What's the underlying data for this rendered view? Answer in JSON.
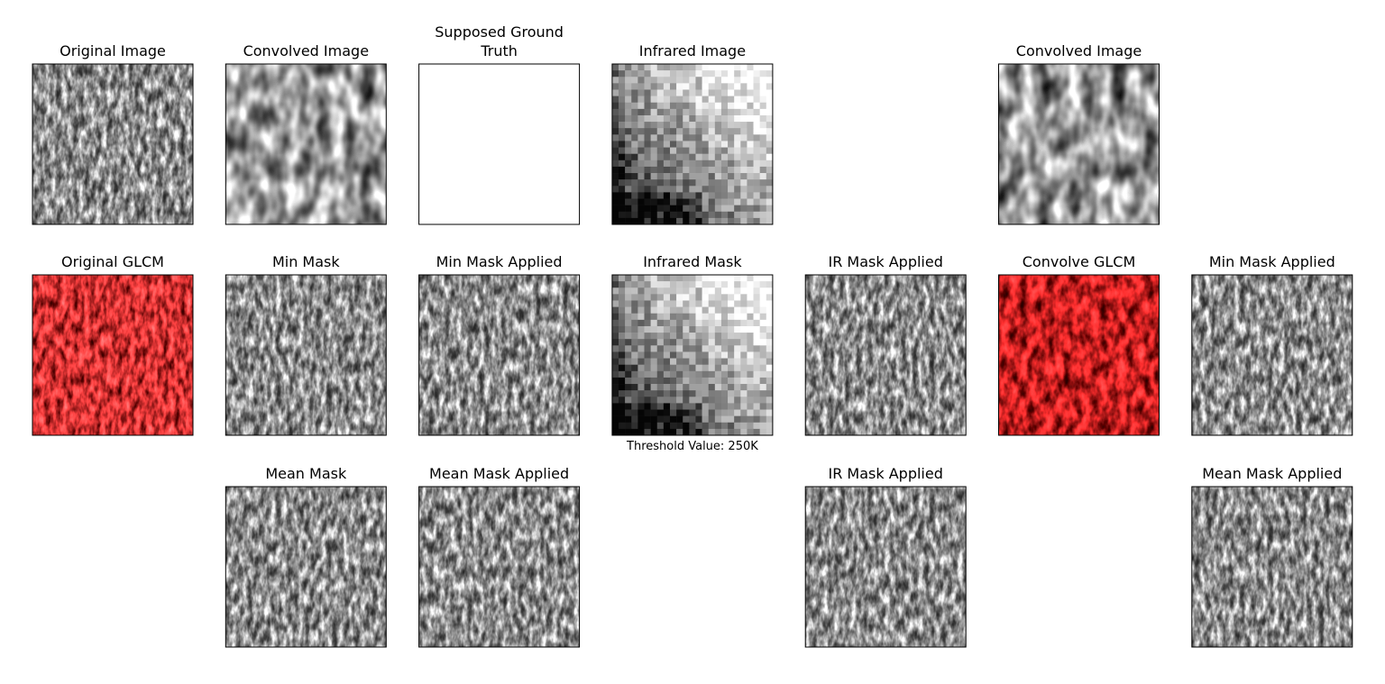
{
  "panels": [
    {
      "title": "Original Image"
    },
    {
      "title": "Convolved Image"
    },
    {
      "title": [
        "Supposed Ground",
        "Truth"
      ]
    },
    {
      "title": "Infrared Image"
    },
    {
      "title": "Convolved Image"
    },
    {
      "title": "Original GLCM"
    },
    {
      "title": "Min Mask"
    },
    {
      "title": "Min Mask Applied"
    },
    {
      "title": "Infrared Mask",
      "caption": "Threshold Value: 250K"
    },
    {
      "title": "IR Mask Applied"
    },
    {
      "title": "Convolve GLCM"
    },
    {
      "title": "Min Mask Applied"
    },
    {
      "title": "Mean Mask"
    },
    {
      "title": "Mean Mask Applied"
    },
    {
      "title": "IR Mask Applied"
    },
    {
      "title": "Mean Mask Applied"
    }
  ]
}
